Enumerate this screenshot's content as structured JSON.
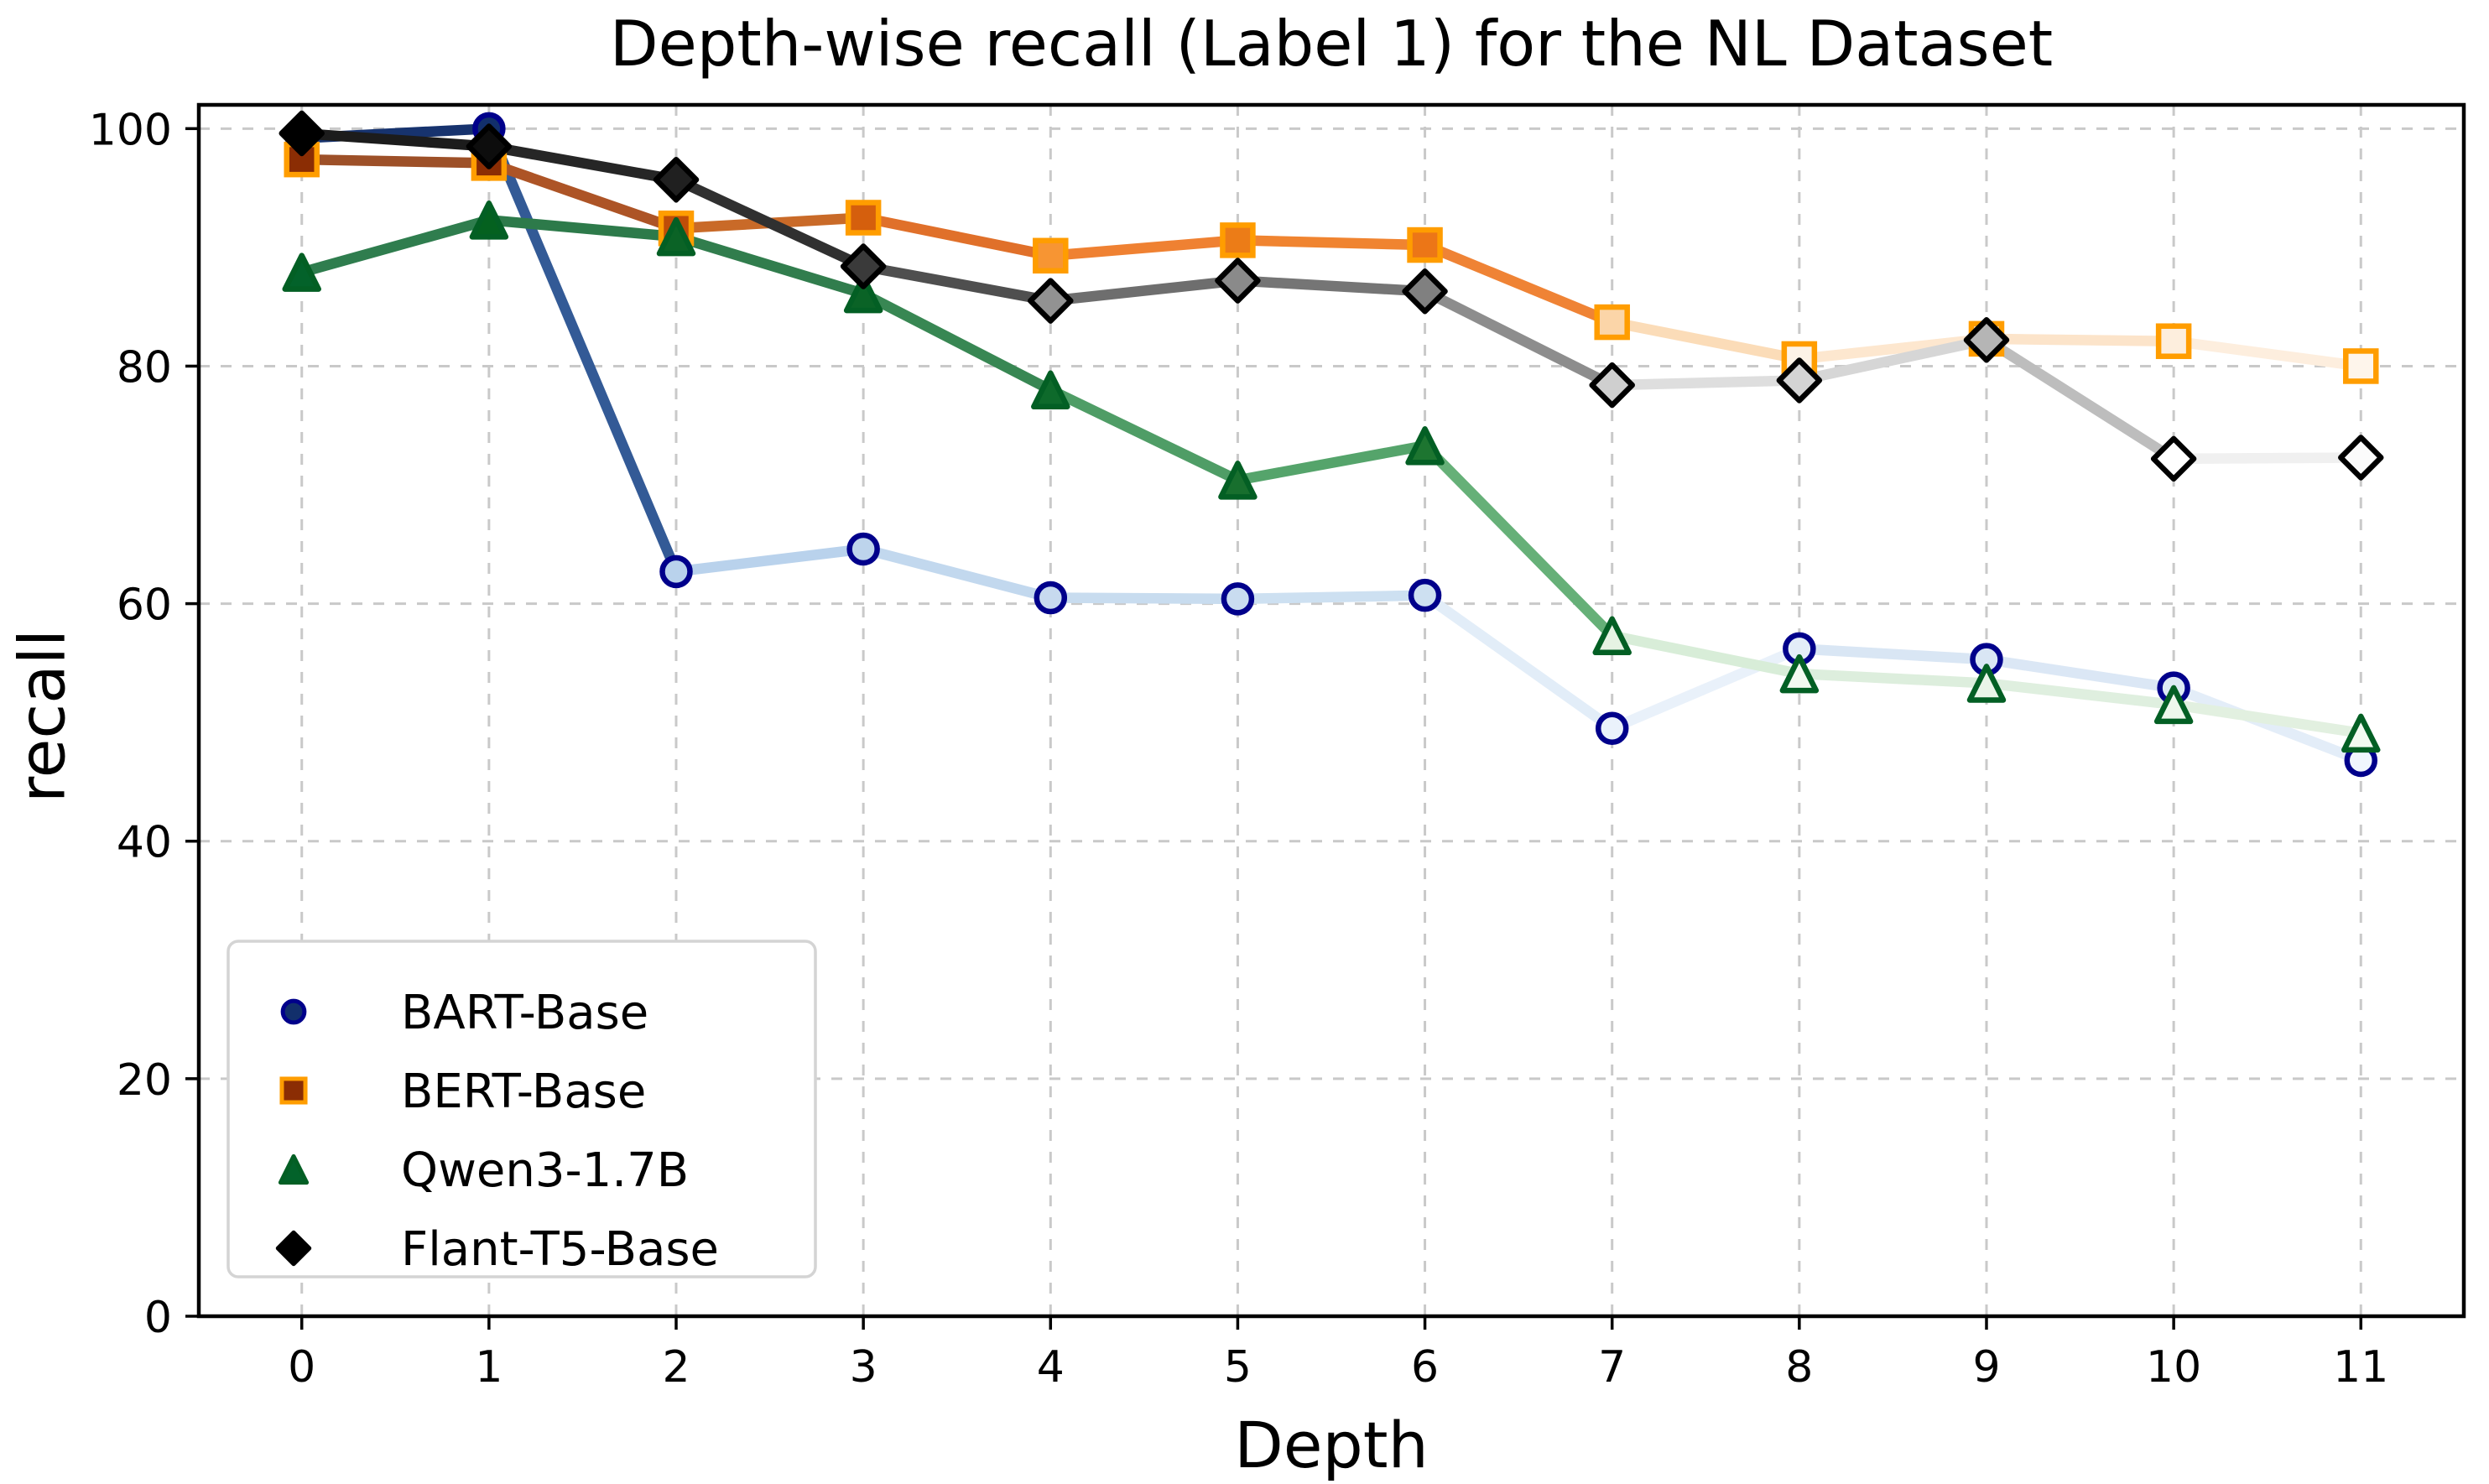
{
  "figure": {
    "background": "#ffffff",
    "grid_color": "#c9c9c9",
    "spine_color": "#000000",
    "legend_border_color": "#d4d4d4"
  },
  "chart_data": {
    "type": "line",
    "title": "Depth-wise recall (Label 1) for the NL Dataset",
    "xlabel": "Depth",
    "ylabel": "recall",
    "x": [
      0,
      1,
      2,
      3,
      4,
      5,
      6,
      7,
      8,
      9,
      10,
      11
    ],
    "x_tick_labels": [
      "0",
      "1",
      "2",
      "3",
      "4",
      "5",
      "6",
      "7",
      "8",
      "9",
      "10",
      "11"
    ],
    "y_ticks": [
      0,
      20,
      40,
      60,
      80,
      100
    ],
    "y_tick_labels": [
      "0",
      "20",
      "40",
      "60",
      "80",
      "100"
    ],
    "xlim": [
      -0.55,
      11.55
    ],
    "ylim": [
      0,
      102
    ],
    "grid": true,
    "grid_style": "dashed",
    "legend_position": "lower left",
    "series": [
      {
        "name": "BART-Base",
        "marker": "circle",
        "edge_color": "#00008b",
        "values": [
          99.2,
          100.0,
          62.7,
          64.6,
          60.5,
          60.4,
          60.7,
          49.5,
          56.2,
          55.3,
          52.9,
          46.8
        ],
        "marker_fills": [
          "#122f6b",
          "#122f6b",
          "#b9d2ec",
          "#bdd4ec",
          "#c7daef",
          "#c9dcf0",
          "#cde0f1",
          "#eaf2fb",
          "#e3edf8",
          "#d9e6f4",
          "#dde9f5",
          "#f0f6fd"
        ],
        "segment_colors": [
          "#17336e",
          "#335a96",
          "#b9d2ec",
          "#c2d8ee",
          "#c8dcef",
          "#cde0f1",
          "#e2edf8",
          "#e9f1fa",
          "#d9e6f4",
          "#dbe7f5",
          "#e3edf8"
        ],
        "legend_fill": "#122f6b"
      },
      {
        "name": "BERT-Base",
        "marker": "square",
        "edge_color": "#ff9d00",
        "values": [
          97.4,
          97.1,
          91.6,
          92.5,
          89.3,
          90.6,
          90.2,
          83.7,
          80.6,
          82.3,
          82.1,
          80.0
        ],
        "marker_fills": [
          "#8b2d04",
          "#8b2d04",
          "#bf4d08",
          "#d55f0d",
          "#f79533",
          "#ec7c17",
          "#ec7617",
          "#fbd5a8",
          "#fdf3e7",
          "#fce3c6",
          "#fdeedd",
          "#fef5eb"
        ],
        "segment_colors": [
          "#9d5028",
          "#ad5426",
          "#c96a28",
          "#e0702a",
          "#ef8132",
          "#f08430",
          "#ef8335",
          "#fbdcb8",
          "#fde7cf",
          "#fce4ca",
          "#fdeede"
        ],
        "legend_fill": "#8b2d04"
      },
      {
        "name": "Qwen3-1.7B",
        "marker": "triangle",
        "edge_color": "#035f24",
        "values": [
          87.9,
          92.3,
          90.9,
          86.1,
          78.0,
          70.4,
          73.3,
          57.3,
          54.1,
          53.3,
          51.5,
          49.1
        ],
        "marker_fills": [
          "#03622a",
          "#04611f",
          "#0b6326",
          "#0a6326",
          "#0e6a2b",
          "#186f2e",
          "#1d7530",
          "#e6f3e3",
          "#f2f9f0",
          "#eaf5e8",
          "#eef7ec",
          "#f3faf1"
        ],
        "segment_colors": [
          "#2f7d4e",
          "#2d7a4a",
          "#317d4d",
          "#388753",
          "#4f9d66",
          "#55a46b",
          "#66b078",
          "#d8edd8",
          "#ddeedd",
          "#dfefdf",
          "#e2f0e0"
        ],
        "legend_fill": "#03622a"
      },
      {
        "name": "Flant-T5-Base",
        "marker": "diamond",
        "edge_color": "#000000",
        "values": [
          99.6,
          98.5,
          95.7,
          88.4,
          85.5,
          87.2,
          86.3,
          78.4,
          78.8,
          82.2,
          72.2,
          72.3
        ],
        "marker_fills": [
          "#000000",
          "#0d0d0d",
          "#202020",
          "#3a3a3a",
          "#929292",
          "#8a8a8a",
          "#808080",
          "#cfcfcf",
          "#d4d4d4",
          "#b5b5b5",
          "#ffffff",
          "#fbfbfb"
        ],
        "segment_colors": [
          "#1c1c1c",
          "#262626",
          "#303030",
          "#4f4f4f",
          "#6e6e6e",
          "#757575",
          "#8d8d8d",
          "#dedede",
          "#d6d6d6",
          "#bdbdbd",
          "#f0f0f0"
        ],
        "legend_fill": "#000000"
      }
    ]
  }
}
